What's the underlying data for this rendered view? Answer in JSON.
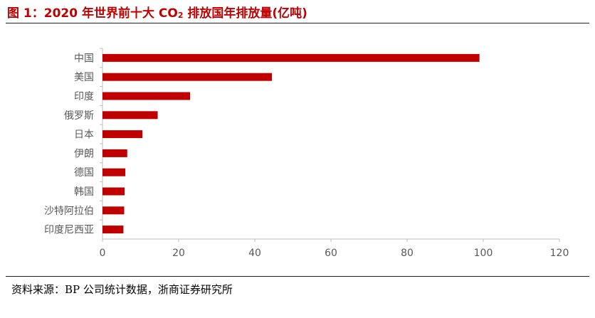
{
  "figure": {
    "title_prefix": "图 1：2020 年世界前十大 CO",
    "title_subscript": "2",
    "title_suffix": " 排放国年排放量(亿吨)",
    "source": "资料来源：BP 公司统计数据，浙商证券研究所"
  },
  "colors": {
    "bar": "#c00000",
    "title": "#c00000",
    "axis": "#bfbfbf",
    "text": "#595959"
  },
  "chart_data": {
    "type": "bar",
    "orientation": "horizontal",
    "categories": [
      "中国",
      "美国",
      "印度",
      "俄罗斯",
      "日本",
      "伊朗",
      "德国",
      "韩国",
      "沙特阿拉伯",
      "印度尼西亚"
    ],
    "values": [
      99,
      44.5,
      23,
      14.5,
      10.5,
      6.5,
      6,
      5.8,
      5.7,
      5.5
    ],
    "xlim": [
      0,
      120
    ],
    "xticks": [
      0,
      20,
      40,
      60,
      80,
      100,
      120
    ],
    "grid": false,
    "legend": "none"
  }
}
